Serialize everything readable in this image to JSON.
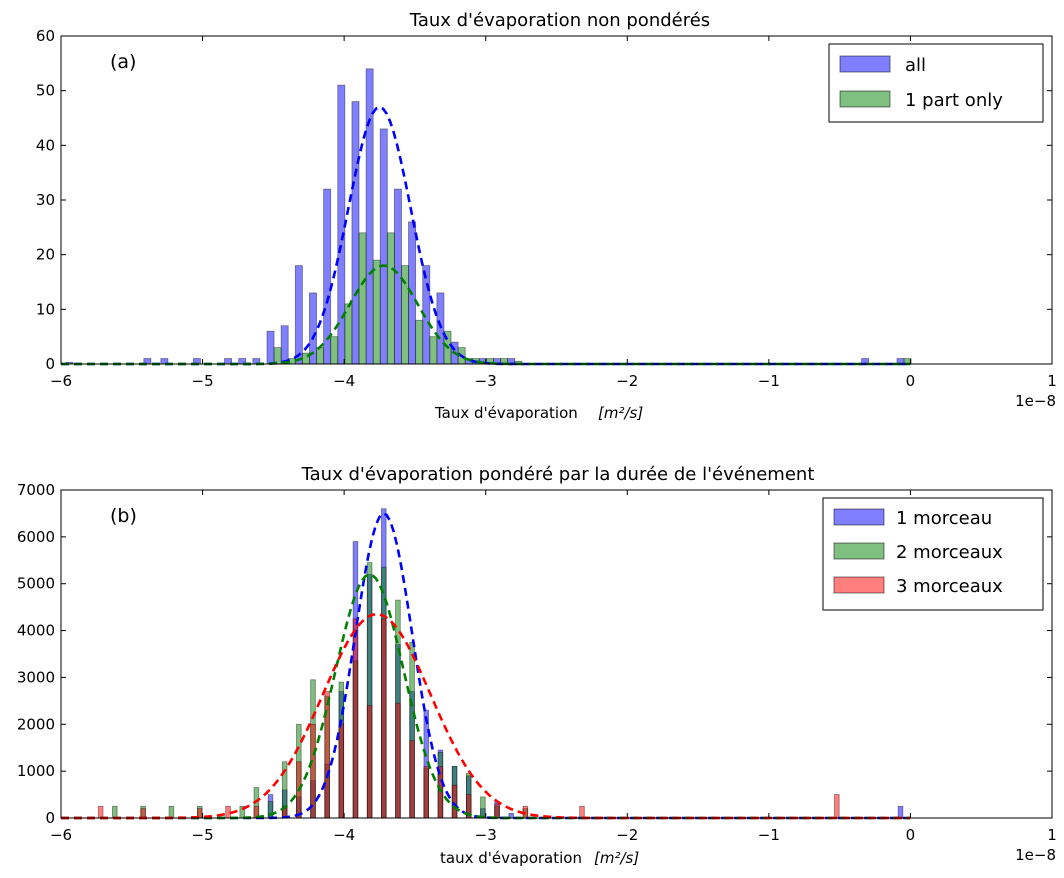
{
  "chart_data": [
    {
      "id": "a",
      "type": "bar",
      "title": "Taux d'évaporation non pondérés",
      "panel_label": "(a)",
      "xlabel": "Taux d'évaporation",
      "xlabel_unit": "[m²/s]",
      "offset_text": "1e−8",
      "xlim": [
        -6,
        1
      ],
      "ylim": [
        0,
        60
      ],
      "xticks": [
        "−6",
        "−5",
        "−4",
        "−3",
        "−2",
        "−1",
        "0",
        "1"
      ],
      "yticks": [
        "0",
        "10",
        "20",
        "30",
        "40",
        "50",
        "60"
      ],
      "grid": false,
      "legend_position": "top-right",
      "bin_width": 0.05,
      "series": [
        {
          "name": "all",
          "color": "#0000ff",
          "x": [
            -5.94,
            -5.39,
            -5.27,
            -5.04,
            -4.82,
            -4.72,
            -4.62,
            -4.52,
            -4.42,
            -4.32,
            -4.22,
            -4.12,
            -4.02,
            -3.92,
            -3.82,
            -3.72,
            -3.62,
            -3.52,
            -3.42,
            -3.32,
            -3.22,
            -3.12,
            -3.02,
            -2.92,
            -2.82,
            -0.32,
            -0.07
          ],
          "values": [
            0.3,
            1,
            1,
            1,
            1,
            1,
            1,
            6,
            7,
            18,
            13,
            32,
            51,
            48,
            54,
            43,
            32,
            26,
            18,
            13,
            4,
            1,
            1,
            1,
            1,
            1,
            1
          ]
        },
        {
          "name": "1 part only",
          "color": "#008000",
          "x": [
            -4.47,
            -4.37,
            -4.27,
            -4.17,
            -4.07,
            -3.97,
            -3.87,
            -3.77,
            -3.67,
            -3.57,
            -3.47,
            -3.37,
            -3.27,
            -3.17,
            -3.07,
            -2.97,
            -2.87,
            -2.77,
            -0.02
          ],
          "values": [
            3,
            1,
            2,
            3,
            5,
            11,
            24,
            19,
            24,
            18,
            8,
            5,
            6,
            3,
            1,
            1,
            1,
            0.5,
            1
          ]
        }
      ],
      "fit_curves": [
        {
          "color": "#0000ff",
          "mu": -3.75,
          "sigma": 0.22,
          "amp": 47,
          "xrange": [
            -6,
            0
          ]
        },
        {
          "color": "#008000",
          "mu": -3.72,
          "sigma": 0.24,
          "amp": 18,
          "xrange": [
            -6,
            0
          ]
        }
      ]
    },
    {
      "id": "b",
      "type": "bar",
      "title": "Taux d'évaporation pondéré par la durée de l'événement",
      "panel_label": "(b)",
      "xlabel": "taux d'évaporation",
      "xlabel_unit": "[m²/s]",
      "offset_text": "1e−8",
      "xlim": [
        -6,
        1
      ],
      "ylim": [
        0,
        7000
      ],
      "xticks": [
        "−6",
        "−5",
        "−4",
        "−3",
        "−2",
        "−1",
        "0",
        "1"
      ],
      "yticks": [
        "0",
        "1000",
        "2000",
        "3000",
        "4000",
        "5000",
        "6000",
        "7000"
      ],
      "grid": false,
      "legend_position": "top-right",
      "bin_width": 0.033,
      "series": [
        {
          "name": "1 morceau",
          "color": "#0000ff",
          "x": [
            -4.52,
            -4.42,
            -4.32,
            -4.22,
            -4.12,
            -4.02,
            -3.92,
            -3.82,
            -3.72,
            -3.62,
            -3.52,
            -3.42,
            -3.32,
            -3.22,
            -3.12,
            -3.02,
            -2.92,
            -2.82,
            -0.07
          ],
          "values": [
            500,
            600,
            450,
            800,
            1150,
            2700,
            5900,
            5200,
            6600,
            3700,
            2700,
            2300,
            1450,
            1100,
            900,
            200,
            350,
            100,
            250
          ]
        },
        {
          "name": "2 morceaux",
          "color": "#008000",
          "x": [
            -5.62,
            -5.42,
            -5.22,
            -5.02,
            -4.72,
            -4.62,
            -4.52,
            -4.42,
            -4.32,
            -4.22,
            -4.12,
            -4.02,
            -3.92,
            -3.82,
            -3.72,
            -3.62,
            -3.52,
            -3.42,
            -3.32,
            -3.22,
            -3.12,
            -3.02,
            -2.92,
            -2.72
          ],
          "values": [
            250,
            250,
            250,
            250,
            250,
            650,
            350,
            1200,
            2000,
            2950,
            2600,
            2900,
            3350,
            5450,
            5350,
            4650,
            3750,
            1050,
            1400,
            1100,
            950,
            450,
            250,
            200
          ]
        },
        {
          "name": "3 morceaux",
          "color": "#ff0000",
          "x": [
            -5.72,
            -5.42,
            -5.02,
            -4.82,
            -4.62,
            -4.42,
            -4.32,
            -4.22,
            -4.12,
            -4.02,
            -3.92,
            -3.82,
            -3.72,
            -3.62,
            -3.52,
            -3.42,
            -3.32,
            -3.22,
            -3.12,
            -2.92,
            -2.72,
            -2.32,
            -0.52
          ],
          "values": [
            250,
            200,
            200,
            250,
            250,
            250,
            1200,
            2000,
            2700,
            2000,
            4250,
            2400,
            4250,
            2450,
            1650,
            1100,
            1100,
            700,
            500,
            300,
            250,
            250,
            500
          ]
        }
      ],
      "fit_curves": [
        {
          "color": "#0000ff",
          "mu": -3.72,
          "sigma": 0.2,
          "amp": 6500,
          "xrange": [
            -6,
            0
          ]
        },
        {
          "color": "#008000",
          "mu": -3.82,
          "sigma": 0.24,
          "amp": 5200,
          "xrange": [
            -6,
            0
          ]
        },
        {
          "color": "#ff0000",
          "mu": -3.77,
          "sigma": 0.38,
          "amp": 4350,
          "xrange": [
            -6,
            0
          ]
        }
      ]
    }
  ]
}
